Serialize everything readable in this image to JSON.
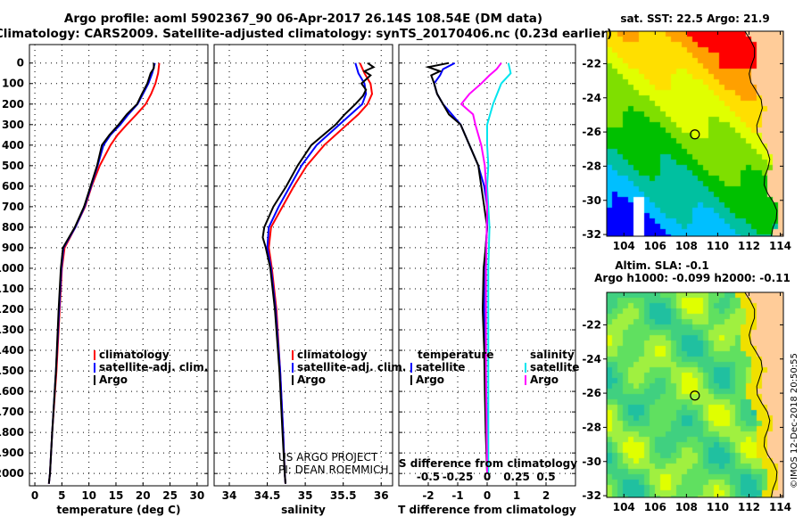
{
  "title_line1": "Argo profile: aoml 5902367_90 06-Apr-2017 26.14S 108.54E (DM data)",
  "title_line2": "Climatology: CARS2009. Satellite-adjusted climatology: synTS_20170406.nc (0.23d earlier)",
  "credit": "US ARGO PROJECT",
  "pi": "PI: DEAN ROEMMICH",
  "watermark": "©IMOS 12-Dec-2018 20:50:55",
  "colors": {
    "clim": "#ff0000",
    "sat": "#0000ff",
    "argo": "#000000",
    "sal_sat": "#00e5ee",
    "sal_argo": "#ff00ff"
  },
  "chart_data": [
    {
      "type": "line",
      "name": "temperature",
      "xlabel": "temperature (deg C)",
      "ylabel": "depth",
      "xlim": [
        -1,
        32
      ],
      "ylim": [
        2060,
        -90
      ],
      "xticks": [
        0,
        5,
        10,
        15,
        20,
        25,
        30
      ],
      "yticks": [
        0,
        100,
        200,
        300,
        400,
        500,
        600,
        700,
        800,
        900,
        1000,
        1100,
        1200,
        1300,
        1400,
        1500,
        1600,
        1700,
        1800,
        1900,
        2000
      ],
      "legend": [
        "climatology",
        "satellite-adj. clim.",
        "Argo"
      ],
      "series": [
        {
          "name": "climatology",
          "color": "#ff0000",
          "depth": [
            0,
            50,
            100,
            150,
            200,
            250,
            300,
            350,
            400,
            500,
            600,
            700,
            800,
            900,
            1000,
            1200,
            1500,
            1800,
            2000,
            2050
          ],
          "values": [
            23,
            22.8,
            22.3,
            21.5,
            20.5,
            18.8,
            17,
            15.3,
            14,
            12,
            10.5,
            9.3,
            7.5,
            5.5,
            5,
            4.6,
            4,
            3.2,
            2.8,
            2.6
          ]
        },
        {
          "name": "satellite-adj. clim.",
          "color": "#0000ff",
          "depth": [
            0,
            50,
            100,
            150,
            200,
            250,
            300,
            350,
            400,
            500,
            600,
            700,
            800,
            900,
            1000,
            1200,
            1500,
            1800,
            2000,
            2050
          ],
          "values": [
            22.2,
            21.7,
            21,
            20,
            19,
            17.3,
            15.8,
            14,
            12.7,
            11.6,
            10.4,
            9.2,
            7.5,
            5.3,
            4.9,
            4.5,
            3.9,
            3.2,
            2.8,
            2.6
          ]
        },
        {
          "name": "Argo",
          "color": "#000000",
          "depth": [
            0,
            25,
            50,
            100,
            150,
            200,
            250,
            300,
            350,
            400,
            500,
            600,
            700,
            800,
            900,
            1000,
            1200,
            1500,
            1800,
            2000,
            2050
          ],
          "values": [
            22,
            22,
            21.4,
            20.8,
            19.8,
            18.9,
            17,
            15.5,
            13.8,
            12.4,
            11.5,
            10.3,
            9.1,
            7.4,
            5.2,
            4.8,
            4.4,
            3.9,
            3.2,
            2.8,
            2.6
          ]
        }
      ]
    },
    {
      "type": "line",
      "name": "salinity",
      "xlabel": "salinity",
      "xlim": [
        33.8,
        36.15
      ],
      "ylim": [
        2060,
        -90
      ],
      "xticks": [
        34,
        34.5,
        35,
        35.5,
        36
      ],
      "legend": [
        "climatology",
        "satellite-adj. clim.",
        "Argo"
      ],
      "series": [
        {
          "name": "climatology",
          "color": "#ff0000",
          "depth": [
            0,
            50,
            100,
            150,
            200,
            250,
            300,
            400,
            500,
            600,
            700,
            800,
            900,
            1000,
            1200,
            1500,
            1800,
            2000,
            2050
          ],
          "values": [
            35.72,
            35.78,
            35.86,
            35.88,
            35.82,
            35.7,
            35.55,
            35.25,
            35.02,
            34.85,
            34.7,
            34.55,
            34.52,
            34.56,
            34.62,
            34.67,
            34.71,
            34.73,
            34.74
          ]
        },
        {
          "name": "satellite-adj. clim.",
          "color": "#0000ff",
          "depth": [
            0,
            50,
            100,
            150,
            200,
            250,
            300,
            400,
            500,
            600,
            700,
            800,
            900,
            1000,
            1200,
            1500,
            1800,
            2000,
            2050
          ],
          "values": [
            35.66,
            35.7,
            35.78,
            35.8,
            35.75,
            35.6,
            35.45,
            35.15,
            34.95,
            34.8,
            34.65,
            34.52,
            34.5,
            34.55,
            34.61,
            34.67,
            34.71,
            34.73,
            34.74
          ]
        },
        {
          "name": "Argo",
          "color": "#000000",
          "depth": [
            0,
            20,
            40,
            60,
            80,
            100,
            130,
            160,
            200,
            250,
            300,
            400,
            500,
            600,
            700,
            800,
            850,
            900,
            1000,
            1200,
            1500,
            1800,
            2000,
            2050
          ],
          "values": [
            35.82,
            35.9,
            35.78,
            35.86,
            35.8,
            35.74,
            35.8,
            35.76,
            35.66,
            35.52,
            35.4,
            35.08,
            34.9,
            34.75,
            34.58,
            34.46,
            34.44,
            34.48,
            34.54,
            34.6,
            34.66,
            34.7,
            34.73,
            34.74
          ]
        }
      ]
    },
    {
      "type": "line",
      "name": "difference",
      "xlabel": "T difference from climatology",
      "xlabel2": "S difference from climatology",
      "xlim": [
        -3,
        3
      ],
      "ylim": [
        2060,
        -90
      ],
      "xticks": [
        -2,
        -1,
        0,
        1,
        2
      ],
      "xticks2": [
        "-0.5",
        "-0.25",
        "0",
        "0.25",
        "0.5"
      ],
      "legend_t_title": "temperature",
      "legend_s_title": "salinity",
      "legend": [
        "satellite",
        "Argo",
        "satellite",
        "Argo"
      ],
      "series": [
        {
          "name": "T satellite",
          "color": "#0000ff",
          "depth": [
            0,
            30,
            60,
            100,
            150,
            200,
            250,
            300,
            400,
            500,
            600,
            700,
            800,
            1000,
            1200,
            1500,
            1800,
            2000
          ],
          "values": [
            -1.1,
            -1.5,
            -1.6,
            -1.8,
            -1.7,
            -1.5,
            -1.2,
            -0.9,
            -0.6,
            -0.3,
            -0.1,
            0,
            0,
            -0.1,
            -0.1,
            -0.05,
            0,
            0
          ]
        },
        {
          "name": "T Argo",
          "color": "#000000",
          "depth": [
            0,
            20,
            40,
            60,
            100,
            150,
            200,
            250,
            300,
            400,
            500,
            600,
            700,
            800,
            900,
            1000,
            1200,
            1400,
            1600,
            1800,
            2000
          ],
          "values": [
            -1.3,
            -2,
            -1.6,
            -1.9,
            -1.8,
            -1.7,
            -1.5,
            -1.3,
            -0.9,
            -0.6,
            -0.3,
            -0.2,
            -0.1,
            0,
            -0.05,
            -0.12,
            -0.15,
            -0.1,
            -0.08,
            -0.05,
            0
          ]
        },
        {
          "name": "S satellite",
          "color": "#00e5ee",
          "depth": [
            0,
            50,
            100,
            200,
            300,
            400,
            500,
            600,
            800,
            1000,
            1500,
            2000
          ],
          "values": [
            0.18,
            0.2,
            0.12,
            0.05,
            0.0,
            0.0,
            0.01,
            0.0,
            0.02,
            0.01,
            0.01,
            0.01
          ]
        },
        {
          "name": "S Argo",
          "color": "#ff00ff",
          "depth": [
            0,
            30,
            60,
            100,
            150,
            200,
            250,
            300,
            400,
            500,
            700,
            1000,
            1500,
            2000
          ],
          "values": [
            0.12,
            0.08,
            0.02,
            -0.05,
            -0.15,
            -0.22,
            -0.12,
            -0.1,
            -0.05,
            -0.02,
            0,
            -0.01,
            -0.01,
            0
          ]
        }
      ]
    },
    {
      "type": "heatmap",
      "name": "sst-map",
      "title": "sat. SST: 22.5 Argo: 21.9",
      "xticks": [
        104,
        106,
        108,
        110,
        112,
        114
      ],
      "yticks": [
        -22,
        -24,
        -26,
        -28,
        -30,
        -32
      ],
      "xlim": [
        102.9,
        114.2
      ],
      "ylim": [
        -32.1,
        -20.1
      ],
      "float_lon": 108.54,
      "float_lat": -26.14
    },
    {
      "type": "heatmap",
      "name": "sla-map",
      "title1": "Altim. SLA: -0.1",
      "title2": "Argo h1000: -0.099 h2000: -0.11",
      "xticks": [
        104,
        106,
        108,
        110,
        112,
        114
      ],
      "yticks": [
        -22,
        -24,
        -26,
        -28,
        -30,
        -32
      ],
      "xlim": [
        102.9,
        114.2
      ],
      "ylim": [
        -32.1,
        -20.1
      ],
      "float_lon": 108.54,
      "float_lat": -26.14
    }
  ]
}
